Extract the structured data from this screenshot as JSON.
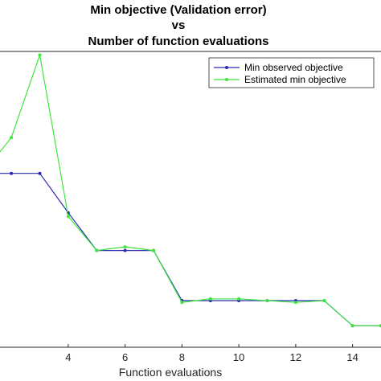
{
  "chart_data": {
    "type": "line",
    "title": [
      "Min objective (Validation error)",
      "vs",
      "Number of function evaluations"
    ],
    "xlabel": "Function evaluations",
    "ylabel": "",
    "xlim": [
      1.6,
      15
    ],
    "ylim": [
      0.0348,
      0.0513
    ],
    "x_ticks": [
      4,
      6,
      8,
      10,
      12,
      14
    ],
    "grid": false,
    "legend_position": "top-right",
    "series": [
      {
        "name": "Min observed objective",
        "color": "#2a2ab4",
        "x": [
          1,
          2,
          3,
          4,
          5,
          6,
          7,
          8,
          9,
          10,
          11,
          12,
          13,
          14,
          15
        ],
        "y": [
          0.0445,
          0.0445,
          0.0445,
          0.0423,
          0.0402,
          0.0402,
          0.0402,
          0.0374,
          0.0374,
          0.0374,
          0.0374,
          0.0374,
          0.0374,
          0.036,
          0.036
        ]
      },
      {
        "name": "Estimated min objective",
        "color": "#3ee63e",
        "x": [
          1,
          2,
          3,
          4,
          5,
          6,
          7,
          8,
          9,
          10,
          11,
          12,
          13,
          14,
          15
        ],
        "y": [
          0.0445,
          0.0465,
          0.0511,
          0.0421,
          0.0402,
          0.0404,
          0.0402,
          0.0373,
          0.0375,
          0.0375,
          0.0374,
          0.0373,
          0.0374,
          0.036,
          0.036
        ]
      }
    ]
  }
}
